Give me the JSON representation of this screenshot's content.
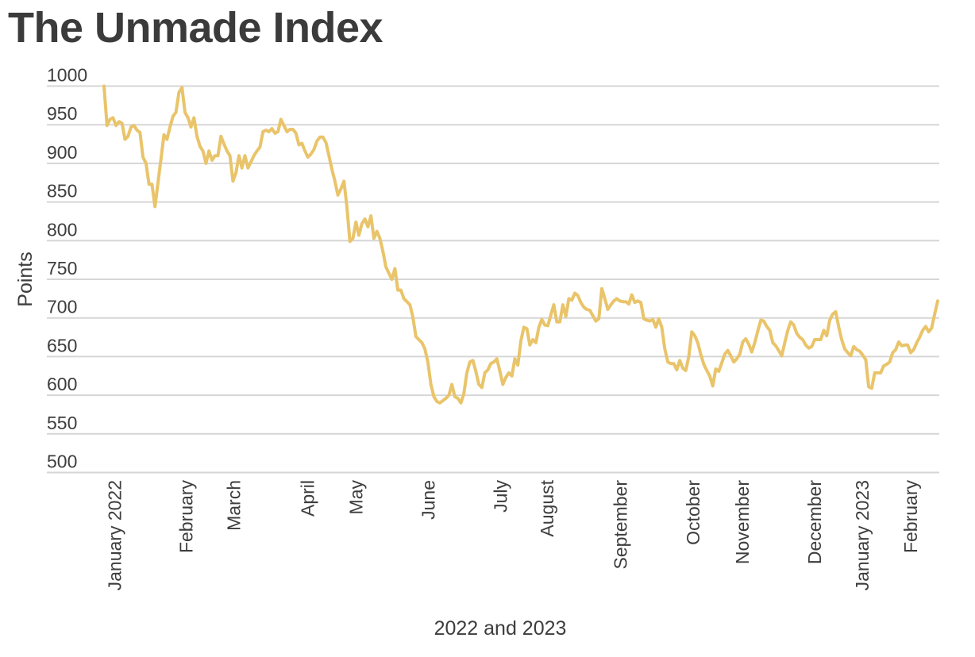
{
  "chart_data": {
    "type": "line",
    "title": "The Unmade Index",
    "xlabel": "2022 and 2023",
    "ylabel": "Points",
    "ylim": [
      500,
      1000
    ],
    "yticks": [
      1000,
      950,
      900,
      850,
      800,
      750,
      700,
      650,
      600,
      550,
      500
    ],
    "grid": true,
    "line_color": "#E9C46A",
    "grid_color": "#d6d6d6",
    "xticks": [
      {
        "label": "January 2022",
        "index": 3.6
      },
      {
        "label": "February",
        "index": 27.4
      },
      {
        "label": "March",
        "index": 43.3
      },
      {
        "label": "April",
        "index": 67.9
      },
      {
        "label": "May",
        "index": 84.0
      },
      {
        "label": "June",
        "index": 108.1
      },
      {
        "label": "July",
        "index": 132.2
      },
      {
        "label": "August",
        "index": 147.8
      },
      {
        "label": "September",
        "index": 172.2
      },
      {
        "label": "October",
        "index": 196.5
      },
      {
        "label": "November",
        "index": 212.9
      },
      {
        "label": "December",
        "index": 237.0
      },
      {
        "label": "January 2023",
        "index": 252.9
      },
      {
        "label": "February",
        "index": 269
      }
    ],
    "series": [
      {
        "name": "The Unmade Index",
        "values": [
          1000,
          949,
          957,
          959,
          949,
          954,
          952,
          931,
          935,
          947,
          949,
          943,
          940,
          908,
          900,
          873,
          873,
          844,
          875,
          906,
          937,
          931,
          947,
          961,
          966,
          992,
          998,
          966,
          959,
          947,
          959,
          935,
          922,
          916,
          900,
          916,
          904,
          910,
          910,
          935,
          925,
          916,
          910,
          877,
          888,
          910,
          894,
          910,
          894,
          902,
          910,
          916,
          921,
          941,
          943,
          941,
          945,
          939,
          941,
          957,
          949,
          941,
          944,
          944,
          939,
          924,
          926,
          916,
          908,
          912,
          918,
          929,
          934,
          934,
          927,
          910,
          892,
          877,
          859,
          867,
          877,
          844,
          799,
          803,
          824,
          807,
          822,
          828,
          818,
          832,
          803,
          812,
          803,
          786,
          766,
          758,
          750,
          764,
          736,
          736,
          725,
          721,
          717,
          701,
          676,
          672,
          668,
          660,
          643,
          614,
          598,
          592,
          590,
          593,
          596,
          600,
          614,
          598,
          596,
          590,
          602,
          629,
          643,
          645,
          631,
          614,
          610,
          629,
          633,
          641,
          643,
          647,
          631,
          614,
          623,
          629,
          625,
          647,
          639,
          670,
          688,
          686,
          665,
          672,
          668,
          688,
          698,
          691,
          690,
          704,
          717,
          695,
          695,
          717,
          702,
          725,
          723,
          732,
          729,
          720,
          714,
          711,
          710,
          703,
          696,
          699,
          738,
          725,
          711,
          717,
          722,
          725,
          722,
          721,
          721,
          718,
          730,
          720,
          722,
          720,
          699,
          697,
          696,
          698,
          688,
          699,
          688,
          660,
          643,
          641,
          641,
          633,
          645,
          635,
          632,
          650,
          682,
          677,
          668,
          653,
          640,
          632,
          625,
          612,
          634,
          631,
          642,
          653,
          658,
          651,
          643,
          647,
          653,
          669,
          673,
          666,
          656,
          668,
          683,
          697,
          696,
          689,
          684,
          668,
          664,
          658,
          651,
          668,
          684,
          695,
          691,
          680,
          675,
          672,
          665,
          661,
          663,
          672,
          672,
          672,
          684,
          677,
          697,
          705,
          708,
          688,
          672,
          660,
          655,
          651,
          663,
          659,
          657,
          652,
          646,
          611,
          609,
          629,
          629,
          629,
          638,
          640,
          643,
          655,
          659,
          669,
          664,
          665,
          665,
          655,
          659,
          668,
          675,
          684,
          689,
          682,
          687,
          705,
          722
        ]
      }
    ]
  }
}
